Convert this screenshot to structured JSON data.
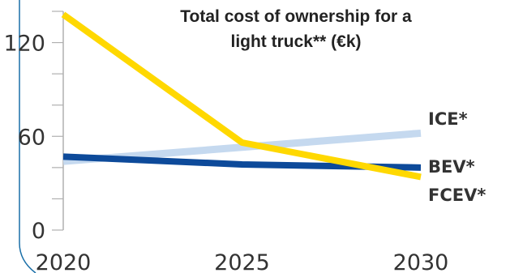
{
  "chart_data": {
    "type": "line",
    "title_lines": [
      "Total cost of ownership for a",
      "light truck** (€k)"
    ],
    "xlabel": "",
    "ylabel": "",
    "x": [
      2020,
      2025,
      2030
    ],
    "x_ticks": [
      "2020",
      "2025",
      "2030"
    ],
    "y_ticks": [
      "0",
      "60",
      "120"
    ],
    "ylim": [
      0,
      140
    ],
    "grid": false,
    "series": [
      {
        "name": "ICE*",
        "values": [
          44,
          53,
          62
        ],
        "color": "#c5d9ef"
      },
      {
        "name": "BEV*",
        "values": [
          47,
          42,
          40
        ],
        "color": "#0d4a9a"
      },
      {
        "name": "FCEV*",
        "values": [
          138,
          56,
          34
        ],
        "color": "#ffd800"
      }
    ]
  }
}
